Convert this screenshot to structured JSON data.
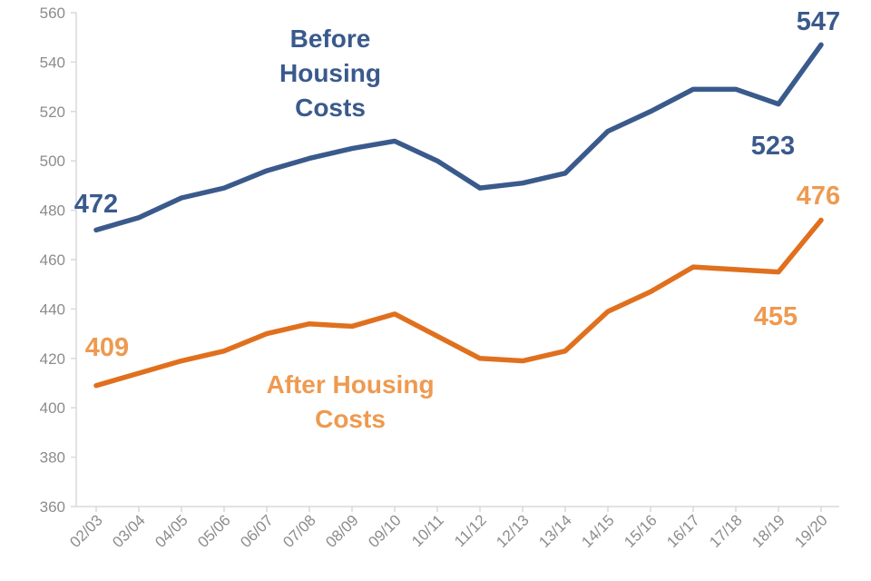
{
  "chart_data": {
    "type": "line",
    "title": "",
    "xlabel": "",
    "ylabel": "",
    "ylim": [
      360,
      560
    ],
    "yticks": [
      360,
      380,
      400,
      420,
      440,
      460,
      480,
      500,
      520,
      540,
      560
    ],
    "categories": [
      "02/03",
      "03/04",
      "04/05",
      "05/06",
      "06/07",
      "07/08",
      "08/09",
      "09/10",
      "10/11",
      "11/12",
      "12/13",
      "13/14",
      "14/15",
      "15/16",
      "16/17",
      "17/18",
      "18/19",
      "19/20"
    ],
    "series": [
      {
        "name": "Before Housing Costs",
        "name_lines": [
          "Before",
          "Housing",
          "Costs"
        ],
        "color": "#3a5a8c",
        "values": [
          472,
          477,
          485,
          489,
          496,
          501,
          505,
          508,
          500,
          489,
          491,
          495,
          512,
          520,
          529,
          529,
          523,
          547
        ],
        "labels": [
          {
            "index": 0,
            "text": "472"
          },
          {
            "index": 16,
            "text": "523"
          },
          {
            "index": 17,
            "text": "547"
          }
        ]
      },
      {
        "name": "After Housing Costs",
        "name_lines": [
          "After Housing",
          "Costs"
        ],
        "color": "#e0701e",
        "label_color": "#ee9a50",
        "values": [
          409,
          414,
          419,
          423,
          430,
          434,
          433,
          438,
          429,
          420,
          419,
          423,
          439,
          447,
          457,
          456,
          455,
          476
        ],
        "labels": [
          {
            "index": 0,
            "text": "409"
          },
          {
            "index": 16,
            "text": "455"
          },
          {
            "index": 17,
            "text": "476"
          }
        ]
      }
    ],
    "grid": false,
    "legend": "inline"
  }
}
